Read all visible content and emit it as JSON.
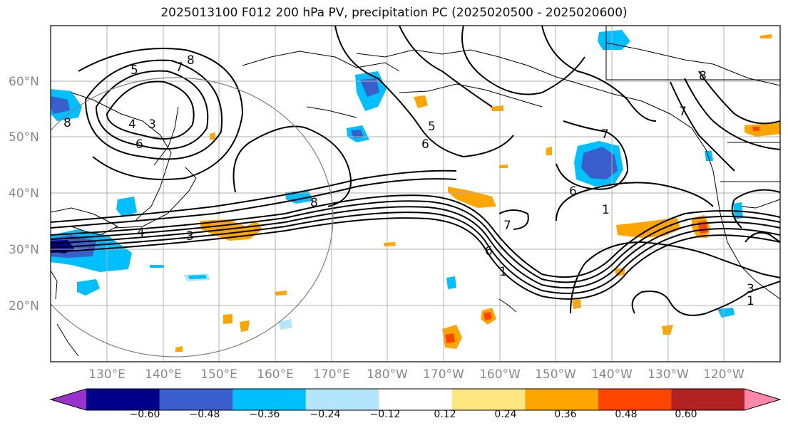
{
  "title": "2025013100 F012 200 hPa PV, precipitation PC (2025020500 - 2025020600)",
  "lat_labels": [
    "60°N",
    "50°N",
    "40°N",
    "30°N",
    "20°N"
  ],
  "lon_labels": [
    "130°E",
    "140°E",
    "150°E",
    "160°E",
    "170°E",
    "180°W",
    "170°W",
    "160°W",
    "150°W",
    "140°W",
    "130°W",
    "120°W"
  ],
  "colorbar": {
    "tick_labels": [
      "−0.60",
      "−0.48",
      "−0.36",
      "−0.24",
      "−0.12",
      "0.12",
      "0.24",
      "0.36",
      "0.48",
      "0.60"
    ],
    "colors": [
      "#9933cc",
      "#00008b",
      "#3a5fcd",
      "#00bfff",
      "#b3e5fc",
      "#ffffff",
      "#ffe680",
      "#ffa500",
      "#ff4500",
      "#b22222",
      "#ff88aa"
    ]
  },
  "contour_labels": [
    "5",
    "7",
    "8",
    "3",
    "4",
    "6",
    "8",
    "6",
    "5",
    "7",
    "6",
    "8",
    "1",
    "3",
    "4",
    "7",
    "6",
    "1",
    "3",
    "1",
    "7",
    "8"
  ]
}
